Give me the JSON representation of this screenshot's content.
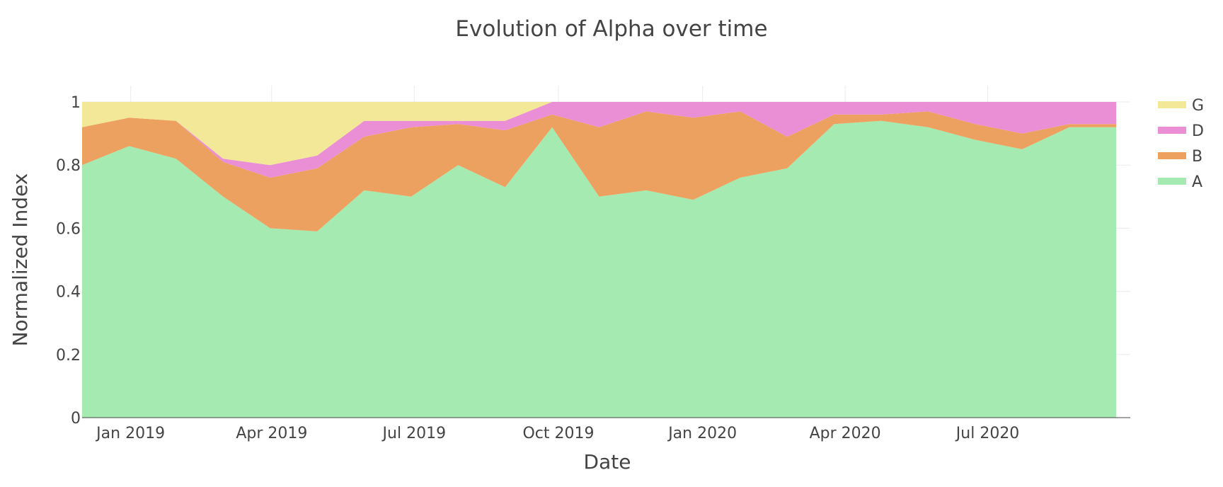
{
  "chart_data": {
    "type": "area",
    "stacked": true,
    "normalized": true,
    "title": "Evolution of Alpha over time",
    "xlabel": "Date",
    "ylabel": "Normalized Index",
    "ylim": [
      0,
      1
    ],
    "y_ticks": [
      0,
      0.2,
      0.4,
      0.6,
      0.8,
      1
    ],
    "y_tick_labels": [
      "0",
      "0.2",
      "0.4",
      "0.6",
      "0.8",
      "1"
    ],
    "x_range": [
      "2018-12-01",
      "2020-09-30"
    ],
    "x_ticks": [
      "2019-01-01",
      "2019-04-01",
      "2019-07-01",
      "2019-10-01",
      "2020-01-01",
      "2020-04-01",
      "2020-07-01"
    ],
    "x_tick_labels": [
      "Jan 2019",
      "Apr 2019",
      "Jul 2019",
      "Oct 2019",
      "Jan 2020",
      "Apr 2020",
      "Jul 2020"
    ],
    "grid": true,
    "legend_position": "right",
    "x": [
      "2018-12-01",
      "2018-12-31",
      "2019-01-30",
      "2019-03-01",
      "2019-03-31",
      "2019-04-30",
      "2019-05-30",
      "2019-06-29",
      "2019-07-29",
      "2019-08-28",
      "2019-09-27",
      "2019-10-27",
      "2019-11-26",
      "2019-12-26",
      "2020-01-25",
      "2020-02-24",
      "2020-03-25",
      "2020-04-24",
      "2020-05-24",
      "2020-06-23",
      "2020-07-23",
      "2020-08-22",
      "2020-09-21"
    ],
    "series": [
      {
        "name": "A",
        "color": "#a5eab1",
        "values": [
          0.8,
          0.86,
          0.82,
          0.7,
          0.6,
          0.59,
          0.72,
          0.7,
          0.8,
          0.73,
          0.92,
          0.7,
          0.72,
          0.69,
          0.76,
          0.79,
          0.93,
          0.94,
          0.92,
          0.88,
          0.85,
          0.92,
          0.92
        ]
      },
      {
        "name": "B",
        "color": "#eca160",
        "values": [
          0.12,
          0.09,
          0.12,
          0.11,
          0.16,
          0.2,
          0.17,
          0.22,
          0.13,
          0.18,
          0.04,
          0.22,
          0.25,
          0.26,
          0.21,
          0.1,
          0.03,
          0.02,
          0.05,
          0.05,
          0.05,
          0.01,
          0.01
        ]
      },
      {
        "name": "D",
        "color": "#ea8ed5",
        "values": [
          0.0,
          0.0,
          0.0,
          0.01,
          0.04,
          0.04,
          0.05,
          0.02,
          0.01,
          0.03,
          0.04,
          0.08,
          0.03,
          0.05,
          0.03,
          0.11,
          0.04,
          0.04,
          0.03,
          0.07,
          0.1,
          0.07,
          0.07
        ]
      },
      {
        "name": "G",
        "color": "#f3e897",
        "values": [
          0.08,
          0.05,
          0.06,
          0.18,
          0.2,
          0.17,
          0.06,
          0.06,
          0.06,
          0.06,
          0.0,
          0.0,
          0.0,
          0.0,
          0.0,
          0.0,
          0.0,
          0.0,
          0.0,
          0.0,
          0.0,
          0.0,
          0.0
        ]
      }
    ]
  }
}
